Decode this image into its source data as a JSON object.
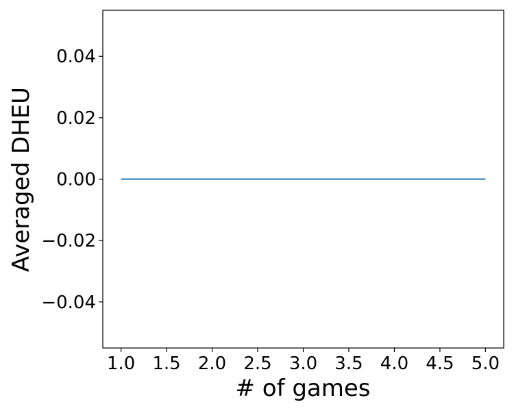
{
  "chart_data": {
    "type": "line",
    "title": "",
    "xlabel": "# of games",
    "ylabel": "Averaged DHEU",
    "x": [
      1,
      2,
      3,
      4,
      5
    ],
    "series": [
      {
        "values": [
          0.0,
          0.0,
          0.0,
          0.0,
          0.0
        ],
        "color": "#1f77b4"
      }
    ],
    "xlim": [
      0.8,
      5.2
    ],
    "ylim": [
      -0.055,
      0.055
    ],
    "xticks": [
      1.0,
      1.5,
      2.0,
      2.5,
      3.0,
      3.5,
      4.0,
      4.5,
      5.0
    ],
    "xtick_labels": [
      "1.0",
      "1.5",
      "2.0",
      "2.5",
      "3.0",
      "3.5",
      "4.0",
      "4.5",
      "5.0"
    ],
    "yticks": [
      0.04,
      0.02,
      0.0,
      -0.02,
      -0.04
    ],
    "ytick_labels": [
      "0.04",
      "0.02",
      "0.00",
      "−0.02",
      "−0.04"
    ],
    "grid": false,
    "legend": "none"
  }
}
